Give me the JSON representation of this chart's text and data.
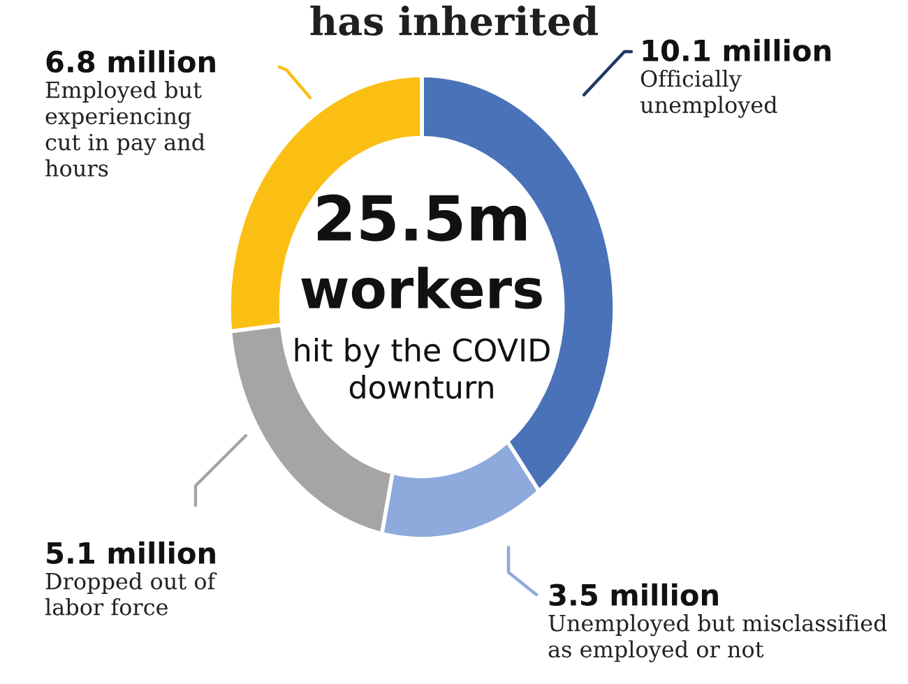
{
  "chart_data": {
    "type": "donut",
    "title": "has inherited",
    "categories": [
      "Officially\nunemployed",
      "Unemployed but misclassified\nas employed or not",
      "Dropped out of\nlabor force",
      "Employed but\nexperiencing\ncut in pay and\nhours"
    ],
    "values": [
      10.1,
      3.5,
      5.1,
      6.8
    ],
    "value_labels": [
      "10.1 million",
      "3.5 million",
      "5.1 million",
      "6.8 million"
    ],
    "colors": [
      "#4a72b8",
      "#8ea9db",
      "#a5a5a5",
      "#fbbf14"
    ],
    "annotations": [
      "25.5m",
      "workers",
      "hit by the COVID\ndownturn"
    ]
  }
}
